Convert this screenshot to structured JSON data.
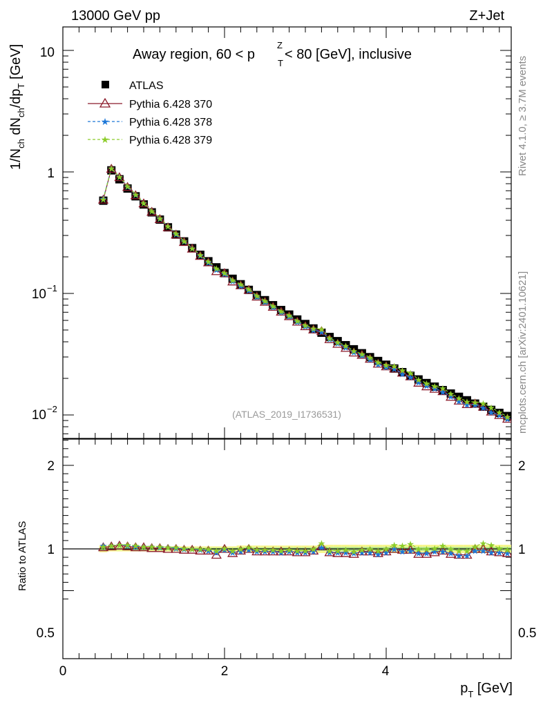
{
  "header": {
    "left": "13000 GeV pp",
    "right": "Z+Jet"
  },
  "side": {
    "top": "Rivet 4.1.0, ≥ 3.7M events",
    "bottom": "mcplots.cern.ch [arXiv:2401.10621]"
  },
  "labels": {
    "title": "Away region, 60 < p",
    "title_sup": "Z",
    "title_sub": "T",
    "title_tail": " < 80 [GeV], inclusive",
    "watermark": "(ATLAS_2019_I1736531)",
    "ylabel": "1/N",
    "ylabel_sub_ch": "ch",
    "ylabel_mid": " dN",
    "ylabel_sub_ch2": "ch",
    "ylabel_dp": "/dp",
    "ylabel_sub_t": "T",
    "ylabel_unit": " [GeV]",
    "ratio_ylabel": "Ratio to ATLAS",
    "xlabel": "p",
    "xlabel_sub": "T",
    "xlabel_unit": " [GeV]"
  },
  "ticks": {
    "main_y": {
      "t10": "10",
      "t1": "1",
      "t01": "10",
      "t01_exp": "−1",
      "t001": "10",
      "t001_exp": "−2"
    },
    "ratio_y": {
      "t2": "2",
      "t1": "1",
      "t05": "0.5"
    },
    "x": {
      "t0": "0",
      "t2": "2",
      "t4": "4"
    }
  },
  "legend": [
    {
      "label": "ATLAS",
      "color": "#000000",
      "marker": "square"
    },
    {
      "label": "Pythia 6.428 370",
      "color": "#8b1a2a",
      "marker": "triangle"
    },
    {
      "label": "Pythia 6.428 378",
      "color": "#1e78d8",
      "marker": "star"
    },
    {
      "label": "Pythia 6.428 379",
      "color": "#8ccc2a",
      "marker": "star"
    }
  ],
  "chart_data": {
    "type": "scatter",
    "title": "Away region, 60 < pT^Z < 80 [GeV], inclusive",
    "xlabel": "pT [GeV]",
    "ylabel": "1/Nch dNch/dpT [GeV]",
    "xlim": [
      0,
      5.5
    ],
    "ylim": [
      0.006,
      16
    ],
    "yscale": "log",
    "ratio_ylim": [
      0.4,
      2.3
    ],
    "x": [
      0.5,
      0.6,
      0.7,
      0.8,
      0.9,
      1.0,
      1.1,
      1.2,
      1.3,
      1.4,
      1.5,
      1.6,
      1.7,
      1.8,
      1.9,
      2.0,
      2.1,
      2.2,
      2.3,
      2.4,
      2.5,
      2.6,
      2.7,
      2.8,
      2.9,
      3.0,
      3.1,
      3.2,
      3.3,
      3.4,
      3.5,
      3.6,
      3.7,
      3.8,
      3.9,
      4.0,
      4.1,
      4.2,
      4.3,
      4.4,
      4.5,
      4.6,
      4.7,
      4.8,
      4.9,
      5.0,
      5.1,
      5.2,
      5.3,
      5.4,
      5.5
    ],
    "atlas": [
      0.58,
      1.03,
      0.87,
      0.73,
      0.63,
      0.54,
      0.465,
      0.405,
      0.35,
      0.305,
      0.268,
      0.236,
      0.208,
      0.184,
      0.164,
      0.147,
      0.132,
      0.119,
      0.107,
      0.097,
      0.088,
      0.08,
      0.073,
      0.067,
      0.061,
      0.056,
      0.0515,
      0.0475,
      0.0438,
      0.0405,
      0.0375,
      0.0347,
      0.0322,
      0.0299,
      0.0278,
      0.0259,
      0.0241,
      0.0225,
      0.021,
      0.0196,
      0.0183,
      0.0171,
      0.016,
      0.015,
      0.0141,
      0.0132,
      0.0124,
      0.0117,
      0.011,
      0.0104,
      0.0098
    ],
    "band_lo": [
      0.96,
      0.97,
      0.97,
      0.97,
      0.97,
      0.97,
      0.97,
      0.97,
      0.97,
      0.97,
      0.97,
      0.97,
      0.97,
      0.97,
      0.97,
      0.97,
      0.97,
      0.96,
      0.96,
      0.96,
      0.96,
      0.96,
      0.96,
      0.96,
      0.96,
      0.96,
      0.96,
      0.95,
      0.95,
      0.95,
      0.95,
      0.95,
      0.95,
      0.95,
      0.95,
      0.95,
      0.95,
      0.95,
      0.95,
      0.95,
      0.95,
      0.95,
      0.95,
      0.95,
      0.95,
      0.95,
      0.95,
      0.95,
      0.95,
      0.95,
      0.95
    ],
    "band_hi": [
      1.04,
      1.03,
      1.03,
      1.03,
      1.03,
      1.03,
      1.03,
      1.03,
      1.03,
      1.03,
      1.03,
      1.03,
      1.03,
      1.03,
      1.03,
      1.03,
      1.03,
      1.04,
      1.04,
      1.04,
      1.04,
      1.04,
      1.04,
      1.04,
      1.04,
      1.04,
      1.04,
      1.05,
      1.05,
      1.05,
      1.05,
      1.05,
      1.05,
      1.05,
      1.05,
      1.05,
      1.05,
      1.05,
      1.05,
      1.05,
      1.05,
      1.05,
      1.05,
      1.05,
      1.05,
      1.05,
      1.05,
      1.05,
      1.05,
      1.05,
      1.05
    ],
    "series": [
      {
        "name": "Pythia 6.428 370",
        "ratio": [
          1.02,
          1.03,
          1.04,
          1.03,
          1.02,
          1.02,
          1.01,
          1.01,
          1.0,
          1.0,
          0.99,
          0.99,
          0.98,
          0.98,
          0.93,
          1.0,
          0.95,
          0.98,
          1.0,
          0.97,
          0.97,
          0.97,
          0.97,
          0.97,
          0.96,
          0.96,
          0.98,
          1.03,
          0.96,
          0.95,
          0.95,
          0.94,
          0.97,
          0.97,
          0.95,
          0.97,
          1.0,
          0.99,
          0.99,
          0.94,
          0.94,
          0.96,
          0.98,
          0.94,
          0.93,
          0.93,
          1.0,
          1.0,
          0.97,
          0.96,
          0.95
        ]
      },
      {
        "name": "Pythia 6.428 378",
        "ratio": [
          1.04,
          1.04,
          1.05,
          1.04,
          1.03,
          1.03,
          1.03,
          1.02,
          1.02,
          1.01,
          1.0,
          1.0,
          0.99,
          0.98,
          0.96,
          0.99,
          0.96,
          0.97,
          0.99,
          0.97,
          0.97,
          0.97,
          0.96,
          0.97,
          0.96,
          0.96,
          0.97,
          1.02,
          0.96,
          0.96,
          0.96,
          0.95,
          0.96,
          0.96,
          0.94,
          0.96,
          1.0,
          0.97,
          0.98,
          0.95,
          0.95,
          0.97,
          0.97,
          0.95,
          0.92,
          0.92,
          0.98,
          0.98,
          0.96,
          0.96,
          0.95
        ]
      },
      {
        "name": "Pythia 6.428 379",
        "ratio": [
          1.03,
          1.04,
          1.05,
          1.05,
          1.04,
          1.03,
          1.03,
          1.03,
          1.02,
          1.02,
          1.01,
          1.0,
          1.0,
          1.0,
          0.98,
          1.01,
          0.98,
          1.0,
          1.02,
          0.99,
          0.99,
          0.99,
          0.98,
          0.99,
          0.98,
          0.98,
          1.0,
          1.07,
          0.98,
          0.98,
          0.99,
          0.97,
          0.99,
          1.0,
          0.98,
          1.0,
          1.05,
          1.04,
          1.06,
          1.0,
          1.0,
          1.01,
          1.04,
          1.0,
          0.98,
          0.98,
          1.03,
          1.07,
          1.05,
          1.01,
          0.99
        ]
      }
    ]
  }
}
